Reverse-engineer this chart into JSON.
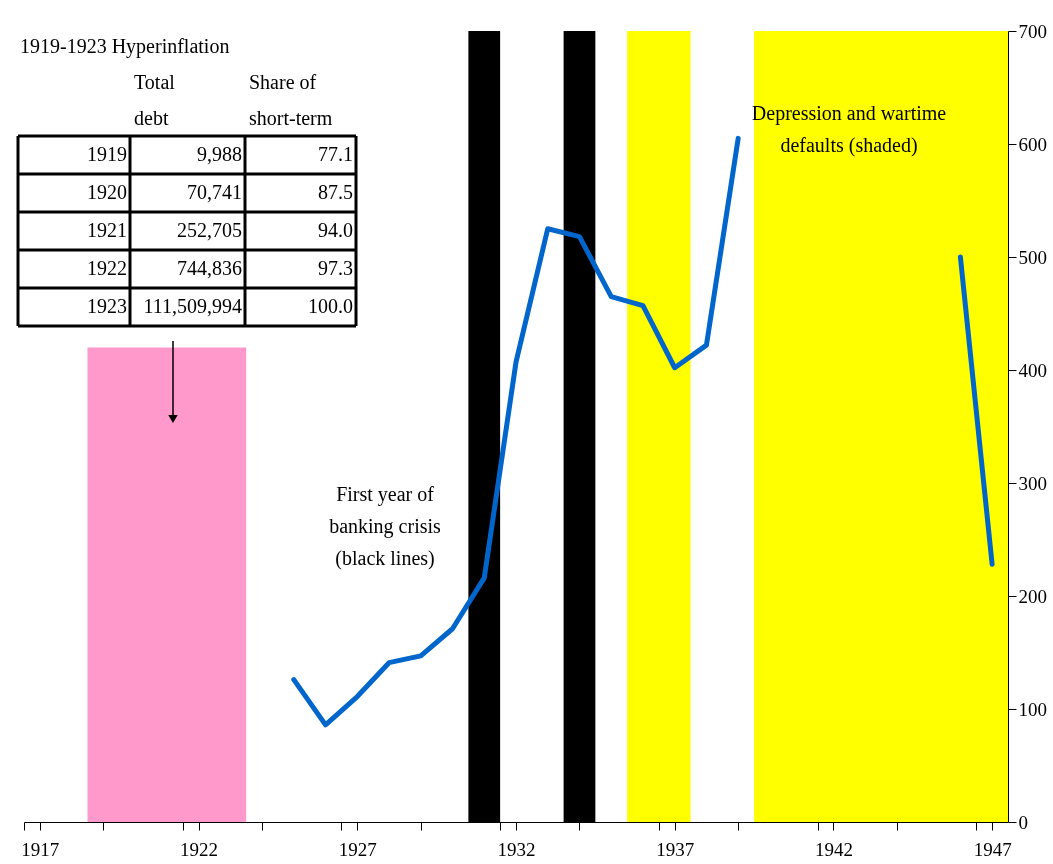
{
  "chart_data": {
    "type": "line",
    "x": [
      1925,
      1926,
      1927,
      1928,
      1929,
      1930,
      1931,
      1932,
      1933,
      1934,
      1935,
      1936,
      1937,
      1938,
      1939,
      1940,
      1941,
      1942,
      1943,
      1944,
      1945,
      1946,
      1947
    ],
    "series": [
      {
        "type": "area",
        "color": "#ff99cc",
        "x": [
          1918.5,
          1923.5
        ],
        "values": [
          420,
          420
        ]
      },
      {
        "color": "#0066cc",
        "values": [
          126,
          86,
          111,
          141,
          147,
          171,
          216,
          407,
          525,
          518,
          465,
          457,
          402,
          422,
          605,
          null,
          null,
          null,
          null,
          null,
          null,
          500,
          228
        ]
      }
    ],
    "xlim": [
      1916.5,
      1947.5
    ],
    "xticks": [
      {
        "value": 1916.5,
        "label": null
      },
      1917,
      {
        "value": 1919,
        "label": null
      },
      {
        "value": 1921.5,
        "label": null
      },
      1922,
      {
        "value": 1924,
        "label": null
      },
      {
        "value": 1926.5,
        "label": null
      },
      1927,
      {
        "value": 1929,
        "label": null
      },
      {
        "value": 1931.5,
        "label": null
      },
      1932,
      {
        "value": 1934,
        "label": null
      },
      {
        "value": 1936.5,
        "label": null
      },
      1937,
      {
        "value": 1939,
        "label": null
      },
      {
        "value": 1941.5,
        "label": null
      },
      1942,
      {
        "value": 1944,
        "label": null
      },
      {
        "value": 1946.5,
        "label": null
      },
      1947
    ],
    "ylim": [
      0,
      700
    ],
    "yticks": [
      0,
      100,
      200,
      300,
      400,
      500,
      600,
      700
    ],
    "bands": [
      {
        "axis": "x",
        "from": 1930.5,
        "to": 1931.5,
        "color": "#000000"
      },
      {
        "axis": "x",
        "from": 1933.5,
        "to": 1934.5,
        "color": "#000000"
      },
      {
        "axis": "x",
        "from": 1935.5,
        "to": 1937.5,
        "color": "#ffff00"
      },
      {
        "axis": "x",
        "from": 1939.5,
        "to": 1947.5,
        "color": "#ffff00"
      }
    ],
    "annotations": [
      "1919-1923 Hyperinflation",
      "Total debt",
      "Share of short-term",
      "1919",
      "9,988",
      "77.1",
      "1920",
      "70,741",
      "87.5",
      "1921",
      "252,705",
      "94.0",
      "1922",
      "744,836",
      "97.3",
      "1923",
      "111,509,994",
      "100.0",
      "First year of\nbanking crisis\n(black lines)",
      "Depression and wartime\ndefaults (shaded)"
    ],
    "grid": false
  }
}
